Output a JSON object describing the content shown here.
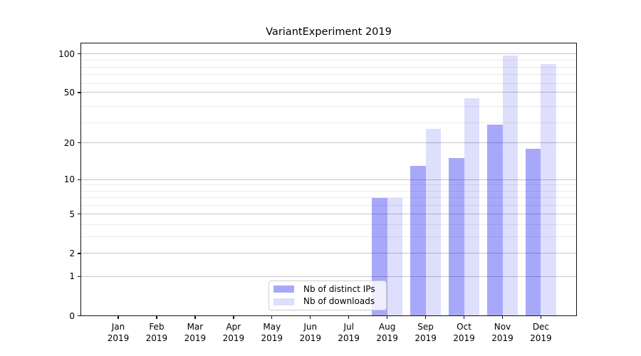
{
  "title": "VariantExperiment 2019",
  "chart_data": {
    "type": "bar",
    "title": "VariantExperiment 2019",
    "categories": [
      "Jan\n2019",
      "Feb\n2019",
      "Mar\n2019",
      "Apr\n2019",
      "May\n2019",
      "Jun\n2019",
      "Jul\n2019",
      "Aug\n2019",
      "Sep\n2019",
      "Oct\n2019",
      "Nov\n2019",
      "Dec\n2019"
    ],
    "series": [
      {
        "name": "Nb of distinct IPs",
        "values": [
          0,
          0,
          0,
          0,
          0,
          0,
          0,
          7,
          13,
          15,
          28,
          18
        ],
        "color_solid": "#a8a8f9",
        "color_fill": "rgba(10,10,240,0.355)"
      },
      {
        "name": "Nb of downloads",
        "values": [
          0,
          0,
          0,
          0,
          0,
          0,
          0,
          7,
          26,
          45,
          97,
          83
        ],
        "color_solid": "#dedefd",
        "color_fill": "rgba(10,10,240,0.135)"
      }
    ],
    "xlabel": "",
    "ylabel": "",
    "yscale": "log1p",
    "ylim": [
      0,
      122
    ],
    "yticks": [
      0,
      1,
      2,
      5,
      10,
      20,
      50,
      100
    ],
    "minor_gridline_values": [
      3,
      4,
      6,
      7,
      8,
      9,
      29,
      39,
      59,
      69,
      79,
      89
    ],
    "grid": true,
    "legend_position": "lower center (inside plot)"
  },
  "colors": {
    "background": "#ffffff",
    "axis": "#111111",
    "grid_major": "#c6c6c6",
    "grid_minor": "#ebebeb",
    "text": "#000000",
    "legend_border": "#cdcdcd",
    "legend_background": "rgba(255,255,255,0.8)"
  }
}
